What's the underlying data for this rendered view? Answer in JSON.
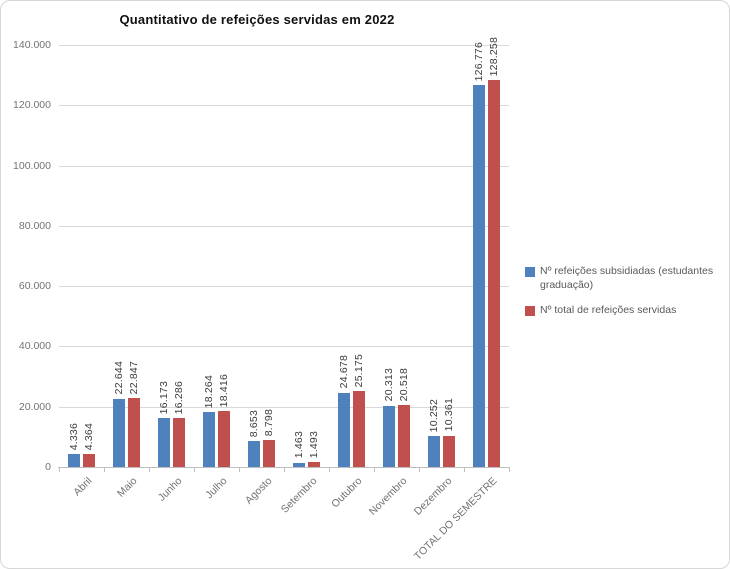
{
  "chart_data": {
    "type": "bar",
    "title": "Quantitativo de refeições servidas em 2022",
    "categories": [
      "Abril",
      "Maio",
      "Junho",
      "Julho",
      "Agosto",
      "Setembro",
      "Outubro",
      "Novembro",
      "Dezembro",
      "TOTAL DO SEMESTRE"
    ],
    "series": [
      {
        "name": "Nº refeições subsidiadas (estudantes graduação)",
        "color": "#4F81BD",
        "values": [
          4336,
          22644,
          16173,
          18264,
          8653,
          1463,
          24678,
          20313,
          10252,
          126776
        ],
        "value_labels": [
          "4.336",
          "22.644",
          "16.173",
          "18.264",
          "8.653",
          "1.463",
          "24.678",
          "20.313",
          "10.252",
          "126.776"
        ]
      },
      {
        "name": "Nº total de refeições servidas",
        "color": "#C0504D",
        "values": [
          4364,
          22847,
          16286,
          18416,
          8798,
          1493,
          25175,
          20518,
          10361,
          128258
        ],
        "value_labels": [
          "4.364",
          "22.847",
          "16.286",
          "18.416",
          "8.798",
          "1.493",
          "25.175",
          "20.518",
          "10.361",
          "128.258"
        ]
      }
    ],
    "xlabel": "",
    "ylabel": "",
    "ylim": [
      0,
      140000
    ],
    "ytick_step": 20000,
    "ytick_labels": [
      "0",
      "20.000",
      "40.000",
      "60.000",
      "80.000",
      "100.000",
      "120.000",
      "140.000"
    ],
    "grid": "horizontal",
    "legend_position": "right",
    "value_labels_rotation": 90,
    "category_labels_rotation": 45
  },
  "colors": {
    "series_blue": "#4F81BD",
    "series_red": "#C0504D",
    "gridline": "#D9D9D9",
    "axis": "#BFBFBF",
    "axis_text": "#737373",
    "value_label_text": "#3D3D3D",
    "legend_text": "#595959",
    "border": "#D7D7D7"
  }
}
